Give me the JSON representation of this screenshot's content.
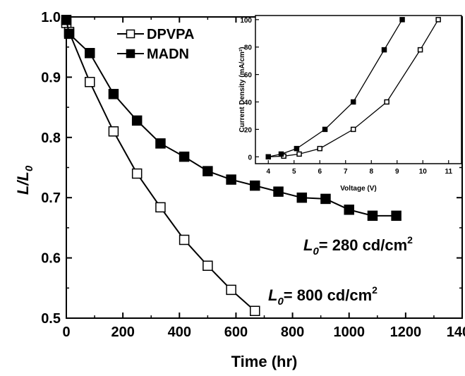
{
  "chart_data": [
    {
      "type": "line",
      "xlabel": "Time (hr)",
      "ylabel_main": "L/L",
      "ylabel_sub": "0",
      "xlim": [
        0,
        1400
      ],
      "ylim": [
        0.5,
        1.0
      ],
      "xticks": [
        "0",
        "200",
        "400",
        "600",
        "800",
        "1000",
        "1200",
        "1400"
      ],
      "yticks": [
        "0.5",
        "0.6",
        "0.7",
        "0.8",
        "0.9",
        "1.0"
      ],
      "legend_position": "top-left",
      "series": [
        {
          "name": "DPVPA",
          "marker": "open-square",
          "x": [
            0,
            10,
            83,
            167,
            250,
            333,
            417,
            500,
            583,
            667
          ],
          "y": [
            0.99,
            0.975,
            0.892,
            0.81,
            0.74,
            0.684,
            0.63,
            0.587,
            0.547,
            0.512
          ]
        },
        {
          "name": "MADN",
          "marker": "filled-square",
          "x": [
            0,
            10,
            83,
            167,
            250,
            333,
            417,
            500,
            583,
            667,
            750,
            833,
            917,
            1000,
            1083,
            1167
          ],
          "y": [
            0.995,
            0.972,
            0.94,
            0.872,
            0.828,
            0.79,
            0.768,
            0.744,
            0.73,
            0.72,
            0.71,
            0.7,
            0.698,
            0.68,
            0.67,
            0.67
          ]
        }
      ],
      "annotations": [
        {
          "id": "madn",
          "prefix": "L",
          "sub": "0",
          "text": "= 280 cd/cm",
          "sup": "2"
        },
        {
          "id": "dpvpa",
          "prefix": "L",
          "sub": "0",
          "text": "= 800 cd/cm",
          "sup": "2"
        }
      ]
    },
    {
      "type": "line",
      "xlabel": "Voltage (V)",
      "ylabel": "Current Density (mA/cm²)",
      "xlim": [
        3.5,
        11.5
      ],
      "ylim": [
        -5,
        103
      ],
      "xticks": [
        "4",
        "5",
        "6",
        "7",
        "8",
        "9",
        "10",
        "11"
      ],
      "yticks": [
        "0",
        "20",
        "40",
        "60",
        "80",
        "100"
      ],
      "series": [
        {
          "name": "DPVPA",
          "marker": "open-square",
          "x": [
            4.0,
            4.6,
            5.2,
            6.0,
            7.3,
            8.6,
            9.9,
            10.6
          ],
          "y": [
            0,
            0.5,
            2,
            6,
            20,
            40,
            78,
            100
          ]
        },
        {
          "name": "MADN",
          "marker": "filled-square",
          "x": [
            4.0,
            4.5,
            5.1,
            6.2,
            7.3,
            8.5,
            9.2
          ],
          "y": [
            0,
            2,
            6,
            20,
            40,
            78,
            100
          ]
        }
      ]
    }
  ]
}
